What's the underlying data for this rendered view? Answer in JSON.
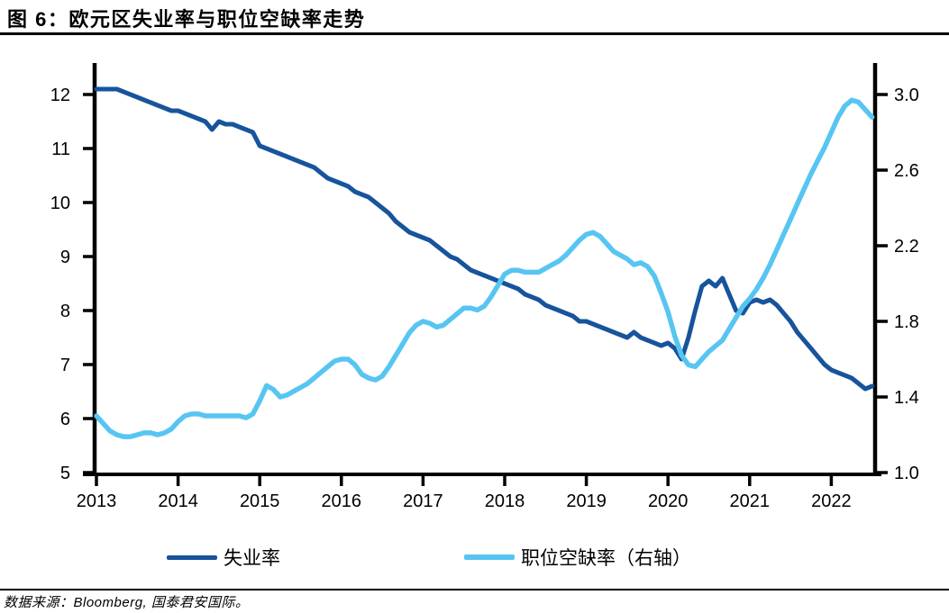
{
  "header": {
    "title": "图 6：欧元区失业率与职位空缺率走势"
  },
  "footer": {
    "source": "数据来源：Bloomberg, 国泰君安国际。"
  },
  "legend": {
    "items": [
      {
        "label": "失业率",
        "color": "#17549c"
      },
      {
        "label": "职位空缺率（右轴）",
        "color": "#57c5f2"
      }
    ]
  },
  "colors": {
    "unemployment_line": "#17549c",
    "vacancy_line": "#57c5f2",
    "axis": "#000000",
    "rule": "#000000"
  },
  "chart_data": {
    "type": "line",
    "title": "欧元区失业率与职位空缺率走势",
    "grid": false,
    "legend_position": "bottom",
    "x_tick_labels": [
      "2013",
      "2014",
      "2015",
      "2016",
      "2017",
      "2018",
      "2019",
      "2020",
      "2021",
      "2022"
    ],
    "x_start_year": 2013,
    "x_interval": "monthly",
    "left_axis": {
      "tick_labels": [
        "12",
        "11",
        "10",
        "9",
        "8",
        "7",
        "6",
        "5"
      ],
      "range": [
        5,
        12
      ],
      "series": "失业率"
    },
    "right_axis": {
      "tick_labels": [
        "3.0",
        "2.6",
        "2.2",
        "1.8",
        "1.4",
        "1.0"
      ],
      "range": [
        1.0,
        3.0
      ],
      "series": "职位空缺率"
    },
    "series": [
      {
        "name": "失业率",
        "axis": "left",
        "color": "#17549c",
        "values": [
          12.1,
          12.1,
          12.1,
          12.1,
          12.05,
          12.0,
          11.95,
          11.9,
          11.85,
          11.8,
          11.75,
          11.7,
          11.7,
          11.65,
          11.6,
          11.55,
          11.5,
          11.35,
          11.5,
          11.45,
          11.45,
          11.4,
          11.35,
          11.3,
          11.05,
          11.0,
          10.95,
          10.9,
          10.85,
          10.8,
          10.75,
          10.7,
          10.65,
          10.55,
          10.45,
          10.4,
          10.35,
          10.3,
          10.2,
          10.15,
          10.1,
          10.0,
          9.9,
          9.8,
          9.65,
          9.55,
          9.45,
          9.4,
          9.35,
          9.3,
          9.2,
          9.1,
          9.0,
          8.95,
          8.85,
          8.75,
          8.7,
          8.65,
          8.6,
          8.55,
          8.5,
          8.45,
          8.4,
          8.3,
          8.25,
          8.2,
          8.1,
          8.05,
          8.0,
          7.95,
          7.9,
          7.8,
          7.8,
          7.75,
          7.7,
          7.65,
          7.6,
          7.55,
          7.5,
          7.6,
          7.5,
          7.45,
          7.4,
          7.35,
          7.4,
          7.3,
          7.1,
          7.5,
          8.0,
          8.45,
          8.55,
          8.45,
          8.6,
          8.3,
          8.0,
          7.95,
          8.15,
          8.2,
          8.15,
          8.2,
          8.1,
          7.95,
          7.8,
          7.6,
          7.45,
          7.3,
          7.15,
          7.0,
          6.9,
          6.85,
          6.8,
          6.75,
          6.65,
          6.55,
          6.6
        ]
      },
      {
        "name": "职位空缺率（右轴）",
        "axis": "right",
        "color": "#57c5f2",
        "values": [
          1.3,
          1.26,
          1.22,
          1.2,
          1.19,
          1.19,
          1.2,
          1.21,
          1.21,
          1.2,
          1.21,
          1.23,
          1.27,
          1.3,
          1.31,
          1.31,
          1.3,
          1.3,
          1.3,
          1.3,
          1.3,
          1.3,
          1.29,
          1.31,
          1.38,
          1.46,
          1.44,
          1.4,
          1.41,
          1.43,
          1.45,
          1.47,
          1.5,
          1.53,
          1.56,
          1.59,
          1.6,
          1.6,
          1.57,
          1.52,
          1.5,
          1.49,
          1.51,
          1.56,
          1.62,
          1.68,
          1.74,
          1.78,
          1.8,
          1.79,
          1.77,
          1.78,
          1.81,
          1.84,
          1.87,
          1.87,
          1.86,
          1.88,
          1.93,
          1.99,
          2.05,
          2.07,
          2.07,
          2.06,
          2.06,
          2.06,
          2.08,
          2.1,
          2.12,
          2.15,
          2.19,
          2.23,
          2.26,
          2.27,
          2.25,
          2.21,
          2.17,
          2.15,
          2.13,
          2.1,
          2.11,
          2.09,
          2.04,
          1.95,
          1.85,
          1.72,
          1.62,
          1.57,
          1.56,
          1.6,
          1.64,
          1.67,
          1.7,
          1.76,
          1.82,
          1.88,
          1.92,
          1.97,
          2.03,
          2.1,
          2.18,
          2.26,
          2.34,
          2.42,
          2.5,
          2.58,
          2.65,
          2.72,
          2.8,
          2.88,
          2.94,
          2.97,
          2.96,
          2.92,
          2.88
        ]
      }
    ]
  }
}
